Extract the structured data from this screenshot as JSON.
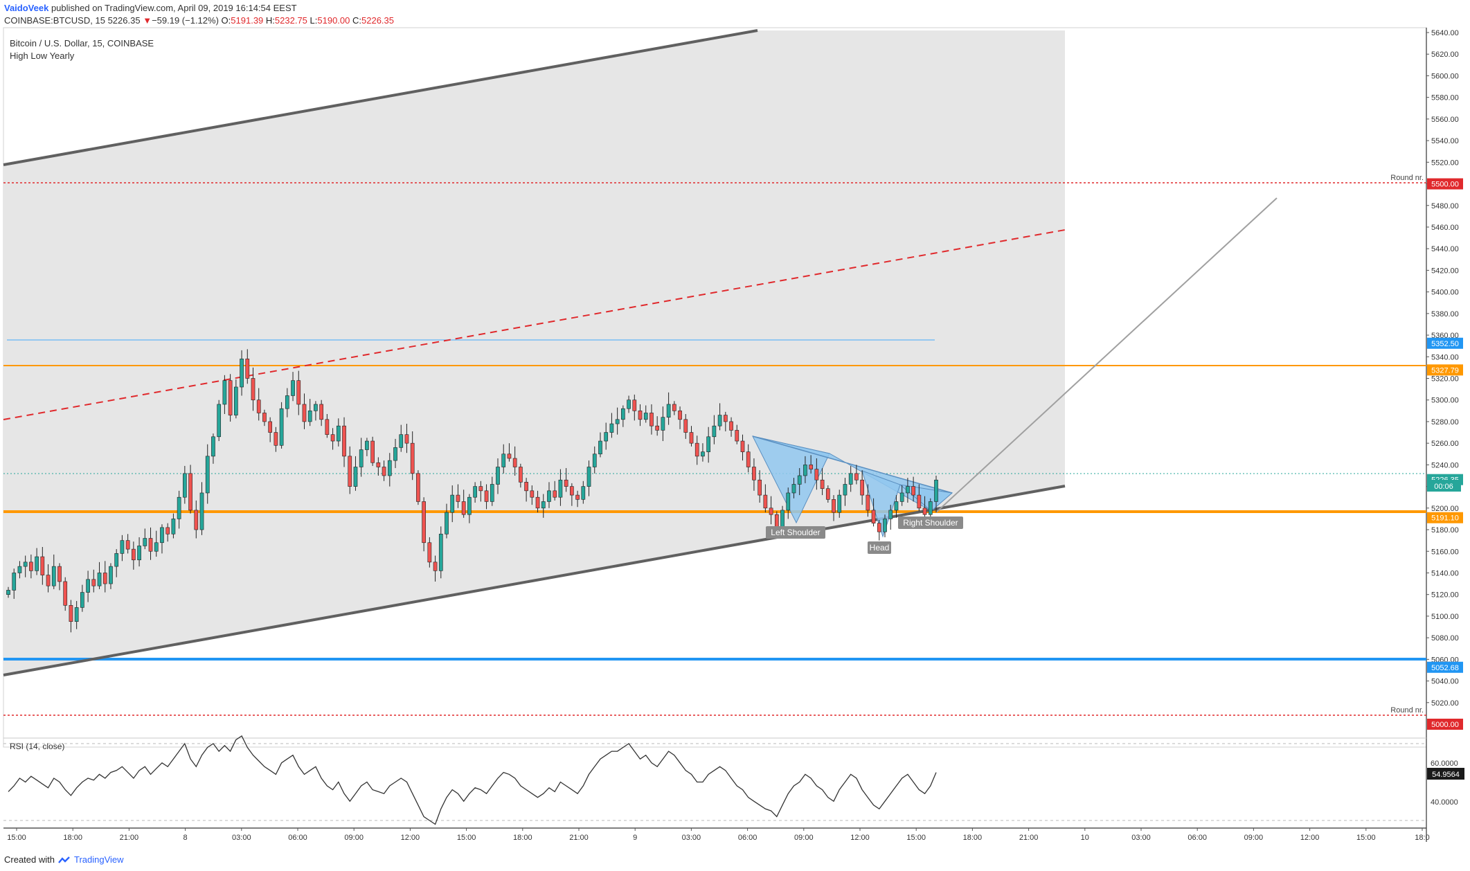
{
  "header": {
    "author": "VaidoVeek",
    "published": "published on TradingView.com, April 09, 2019 16:14:54 EEST",
    "symbol": "COINBASE:BTCUSD, 15",
    "last": "5226.35",
    "change_arrow": "▼",
    "change": "−59.19 (−1.12%)",
    "o_label": "O:",
    "o": "5191.39",
    "h_label": "H:",
    "h": "5232.75",
    "l_label": "L:",
    "l": "5190.00",
    "c_label": "C:",
    "c": "5226.35"
  },
  "legend": {
    "title": "Bitcoin / U.S. Dollar, 15, COINBASE",
    "indicator": "High Low Yearly"
  },
  "rsi": {
    "label": "RSI (14, close)",
    "value": "54.9564",
    "ticks": [
      "60.0000",
      "40.0000"
    ]
  },
  "footer": {
    "created_with": "Created with",
    "brand": "TradingView"
  },
  "annotations": {
    "left_shoulder": "Left Shoulder",
    "head": "Head",
    "right_shoulder": "Right Shoulder",
    "round_nr_upper": "Round nr.",
    "round_nr_lower": "Round nr."
  },
  "price_labels": [
    {
      "text": "5500.00",
      "price": 5500,
      "color": "#e0292c"
    },
    {
      "text": "5352.50",
      "price": 5352.5,
      "color": "#2196f3"
    },
    {
      "text": "5327.79",
      "price": 5327.79,
      "color": "#ff9800"
    },
    {
      "text": "5226.35",
      "price": 5226.35,
      "color": "#26a69a"
    },
    {
      "text": "5191.10",
      "price": 5191.1,
      "color": "#ff9800"
    },
    {
      "text": "5052.68",
      "price": 5052.68,
      "color": "#2196f3"
    },
    {
      "text": "5000.00",
      "price": 5000,
      "color": "#e0292c"
    }
  ],
  "countdown": "00:06",
  "colors": {
    "up": "#26a69a",
    "down": "#ef5350",
    "channel": "#606060",
    "shade": "#e6e6e6",
    "orange": "#ff9800",
    "blue": "#2196f3",
    "red": "#e0292c",
    "pattern_fill": "#90c7ee"
  },
  "chart_data": {
    "type": "candlestick",
    "title": "Bitcoin / U.S. Dollar, 15, COINBASE",
    "timeframe": "15",
    "ylim": [
      5000,
      5640
    ],
    "y_ticks": [
      5020,
      5040,
      5060,
      5080,
      5100,
      5120,
      5140,
      5160,
      5180,
      5200,
      5220,
      5240,
      5260,
      5280,
      5300,
      5320,
      5340,
      5360,
      5380,
      5400,
      5420,
      5440,
      5460,
      5480,
      5500,
      5520,
      5540,
      5560,
      5580,
      5600,
      5620,
      5640
    ],
    "y_tick_labels": [
      "5020.00",
      "5040.00",
      "5060.00",
      "5080.00",
      "5100.00",
      "5120.00",
      "5140.00",
      "5160.00",
      "5180.00",
      "5200.00",
      "5220.00",
      "5240.00",
      "5260.00",
      "5280.00",
      "5300.00",
      "5320.00",
      "5340.00",
      "5360.00",
      "5380.00",
      "5400.00",
      "5420.00",
      "5440.00",
      "5460.00",
      "5480.00",
      "5500.00",
      "5520.00",
      "5540.00",
      "5560.00",
      "5580.00",
      "5600.00",
      "5620.00",
      "5640.00"
    ],
    "x_ticks": [
      "15:00",
      "18:00",
      "21:00",
      "8",
      "03:00",
      "06:00",
      "09:00",
      "12:00",
      "15:00",
      "18:00",
      "21:00",
      "9",
      "03:00",
      "06:00",
      "09:00",
      "12:00",
      "15:00",
      "18:00",
      "21:00",
      "10",
      "03:00",
      "06:00",
      "09:00",
      "12:00",
      "15:00",
      "18:0"
    ],
    "horizontal_levels": [
      {
        "price": 5500,
        "style": "dotted",
        "color": "red"
      },
      {
        "price": 5352.5,
        "style": "solid",
        "color": "blue"
      },
      {
        "price": 5327.79,
        "style": "solid",
        "color": "orange"
      },
      {
        "price": 5226.35,
        "style": "dotted",
        "color": "green"
      },
      {
        "price": 5191.1,
        "style": "solid",
        "color": "orange"
      },
      {
        "price": 5052.68,
        "style": "solid",
        "color": "blue"
      },
      {
        "price": 5000,
        "style": "dotted",
        "color": "red"
      }
    ],
    "candle_closes": [
      5124,
      5140,
      5146,
      5150,
      5142,
      5155,
      5138,
      5128,
      5146,
      5132,
      5110,
      5095,
      5108,
      5122,
      5134,
      5128,
      5140,
      5130,
      5146,
      5158,
      5170,
      5162,
      5152,
      5165,
      5172,
      5160,
      5168,
      5182,
      5176,
      5190,
      5210,
      5232,
      5198,
      5180,
      5214,
      5248,
      5266,
      5296,
      5318,
      5286,
      5312,
      5338,
      5320,
      5300,
      5288,
      5280,
      5270,
      5258,
      5292,
      5304,
      5318,
      5296,
      5280,
      5290,
      5296,
      5282,
      5268,
      5262,
      5276,
      5248,
      5220,
      5238,
      5254,
      5262,
      5242,
      5238,
      5230,
      5244,
      5256,
      5268,
      5260,
      5232,
      5206,
      5168,
      5150,
      5142,
      5176,
      5196,
      5212,
      5206,
      5194,
      5210,
      5220,
      5216,
      5206,
      5222,
      5238,
      5250,
      5246,
      5238,
      5224,
      5216,
      5210,
      5200,
      5206,
      5216,
      5210,
      5226,
      5220,
      5212,
      5208,
      5220,
      5238,
      5250,
      5262,
      5270,
      5278,
      5282,
      5292,
      5300,
      5290,
      5282,
      5288,
      5276,
      5272,
      5284,
      5296,
      5290,
      5282,
      5270,
      5260,
      5248,
      5252,
      5266,
      5276,
      5286,
      5280,
      5272,
      5262,
      5252,
      5238,
      5226,
      5212,
      5200,
      5194,
      5182,
      5198,
      5214,
      5222,
      5230,
      5240,
      5236,
      5226,
      5218,
      5208,
      5196,
      5212,
      5222,
      5232,
      5226,
      5212,
      5198,
      5186,
      5178,
      5190,
      5198,
      5206,
      5214,
      5220,
      5212,
      5200,
      5194,
      5206,
      5226
    ],
    "rsi_values": [
      45,
      48,
      52,
      50,
      53,
      51,
      49,
      47,
      52,
      50,
      46,
      43,
      47,
      50,
      52,
      51,
      54,
      52,
      55,
      56,
      58,
      55,
      52,
      56,
      58,
      54,
      57,
      60,
      58,
      62,
      66,
      70,
      62,
      58,
      64,
      68,
      70,
      66,
      69,
      66,
      72,
      74,
      68,
      64,
      61,
      58,
      56,
      54,
      60,
      62,
      64,
      58,
      54,
      56,
      58,
      52,
      48,
      46,
      50,
      44,
      40,
      44,
      48,
      50,
      46,
      45,
      44,
      48,
      50,
      52,
      50,
      44,
      38,
      32,
      30,
      28,
      36,
      42,
      46,
      44,
      40,
      44,
      47,
      46,
      44,
      48,
      52,
      55,
      54,
      52,
      48,
      46,
      44,
      42,
      44,
      47,
      45,
      50,
      48,
      46,
      44,
      48,
      54,
      58,
      62,
      64,
      66,
      66,
      68,
      70,
      66,
      62,
      64,
      60,
      58,
      62,
      66,
      64,
      60,
      56,
      54,
      50,
      50,
      54,
      56,
      58,
      56,
      52,
      48,
      46,
      42,
      40,
      38,
      36,
      35,
      32,
      38,
      44,
      48,
      50,
      54,
      52,
      48,
      46,
      42,
      40,
      46,
      50,
      54,
      52,
      46,
      42,
      38,
      36,
      40,
      44,
      48,
      52,
      54,
      50,
      46,
      44,
      48,
      55
    ]
  }
}
